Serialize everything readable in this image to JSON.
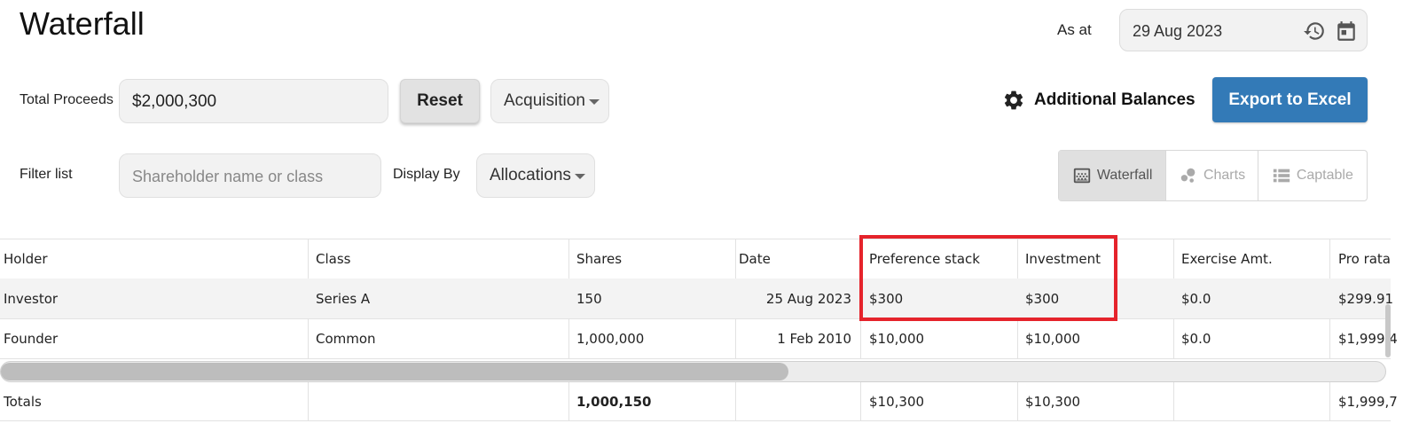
{
  "header": {
    "title": "Waterfall",
    "as_at_label": "As at",
    "as_at_date": "29 Aug 2023"
  },
  "toolbar": {
    "total_proceeds_label": "Total Proceeds",
    "total_proceeds_value": "$2,000,300",
    "reset_label": "Reset",
    "scenario_selected": "Acquisition",
    "additional_balances_label": "Additional Balances",
    "export_label": "Export to Excel",
    "filter_label": "Filter list",
    "filter_placeholder": "Shareholder name or class",
    "display_by_label": "Display By",
    "display_by_selected": "Allocations"
  },
  "view_toggle": {
    "waterfall": "Waterfall",
    "charts": "Charts",
    "captable": "Captable",
    "active": "Waterfall"
  },
  "table": {
    "columns": [
      "Holder",
      "Class",
      "Shares",
      "Date",
      "Preference stack",
      "Investment",
      "Exercise Amt.",
      "Pro rata"
    ],
    "rows": [
      {
        "holder": "Investor",
        "class": "Series A",
        "shares": "150",
        "date": "25 Aug 2023",
        "pref": "$300",
        "investment": "$300",
        "exercise": "$0.0",
        "pro_rata": "$299.91"
      },
      {
        "holder": "Founder",
        "class": "Common",
        "shares": "1,000,000",
        "date": "1 Feb 2010",
        "pref": "$10,000",
        "investment": "$10,000",
        "exercise": "$0.0",
        "pro_rata": "$1,999,4"
      }
    ],
    "totals": {
      "label": "Totals",
      "shares": "1,000,150",
      "pref": "$10,300",
      "investment": "$10,300",
      "pro_rata": "$1,999,7"
    },
    "horizontal_scroll_position": 0.57
  },
  "colors": {
    "accent": "#337ab7",
    "highlight": "#e5232b"
  },
  "icons": {
    "history": "history-icon",
    "calendar": "calendar-icon",
    "gear": "gear-icon",
    "waterfall": "waterfall-grid-icon",
    "charts": "bubble-chart-icon",
    "captable": "list-icon"
  }
}
